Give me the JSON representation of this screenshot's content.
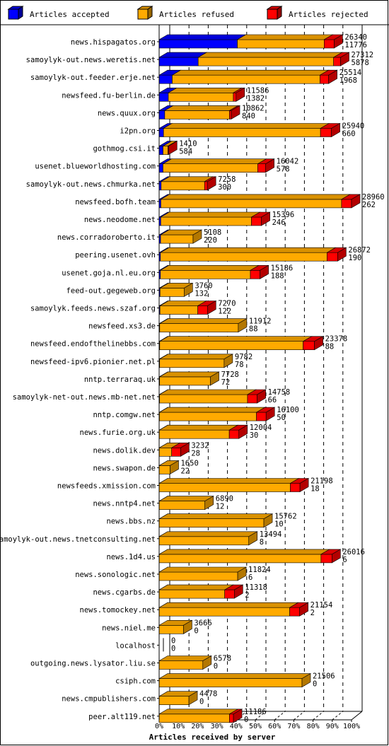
{
  "chart_data": {
    "type": "bar",
    "orientation": "horizontal",
    "stacked": true,
    "three_d": true,
    "xlabel": "Articles received by server",
    "xlim": [
      0,
      100
    ],
    "x_ticks": [
      "0%",
      "10%",
      "20%",
      "30%",
      "40%",
      "50%",
      "60%",
      "70%",
      "80%",
      "90%",
      "100%"
    ],
    "grid": "vertical dashed",
    "legend_placement": "top",
    "series": [
      {
        "name": "Articles accepted",
        "color": "#0000ff"
      },
      {
        "name": "Articles refused",
        "color": "#ffaa00"
      },
      {
        "name": "Articles rejected",
        "color": "#ff0000"
      }
    ],
    "categories": [
      "news.hispagatos.org",
      "samoylyk-out.news.weretis.net",
      "samoylyk-out.feeder.erje.net",
      "newsfeed.fu-berlin.de",
      "news.quux.org",
      "i2pn.org",
      "gothmog.csi.it",
      "usenet.blueworldhosting.com",
      "samoylyk-out.news.chmurka.net",
      "newsfeed.bofh.team",
      "news.neodome.net",
      "news.corradoroberto.it",
      "peering.usenet.ovh",
      "usenet.goja.nl.eu.org",
      "feed-out.gegeweb.org",
      "samoylyk.feeds.news.szaf.org",
      "newsfeed.xs3.de",
      "newsfeed.endofthelinebbs.com",
      "newsfeed-ipv6.pionier.net.pl",
      "nntp.terraraq.uk",
      "samoylyk-net-out.news.mb-net.net",
      "nntp.comgw.net",
      "news.furie.org.uk",
      "news.dolik.dev",
      "news.swapon.de",
      "newsfeeds.xmission.com",
      "news.nntp4.net",
      "news.bbs.nz",
      "samoylyk-out.news.tnetconsulting.net",
      "news.1d4.us",
      "news.sonologic.net",
      "news.cgarbs.de",
      "news.tomockey.net",
      "news.niel.me",
      "localhost",
      "outgoing.news.lysator.liu.se",
      "csiph.com",
      "news.cmpublishers.com",
      "peer.alt119.net"
    ],
    "totals": [
      26340,
      27312,
      25514,
      11586,
      10862,
      25940,
      1410,
      16042,
      7258,
      28960,
      15396,
      5108,
      26872,
      15186,
      3760,
      7270,
      11912,
      23378,
      9782,
      7728,
      14758,
      16100,
      12004,
      3232,
      1650,
      21198,
      6890,
      15762,
      13494,
      26016,
      11824,
      11318,
      21154,
      3666,
      0,
      6578,
      21506,
      4478,
      11186
    ],
    "accepted": [
      11776,
      5878,
      1968,
      1382,
      840,
      660,
      584,
      578,
      300,
      262,
      246,
      220,
      190,
      188,
      132,
      122,
      88,
      88,
      78,
      72,
      66,
      50,
      30,
      28,
      22,
      18,
      12,
      10,
      8,
      6,
      6,
      2,
      2,
      0,
      0,
      0,
      0,
      0,
      0
    ],
    "rejected": [
      1500,
      1050,
      1300,
      420,
      270,
      1650,
      90,
      1200,
      420,
      1500,
      1500,
      0,
      1600,
      1450,
      0,
      1450,
      0,
      1700,
      0,
      0,
      1450,
      1450,
      1450,
      1350,
      0,
      1450,
      0,
      0,
      0,
      1650,
      0,
      1450,
      1500,
      0,
      0,
      0,
      0,
      0,
      600
    ]
  }
}
